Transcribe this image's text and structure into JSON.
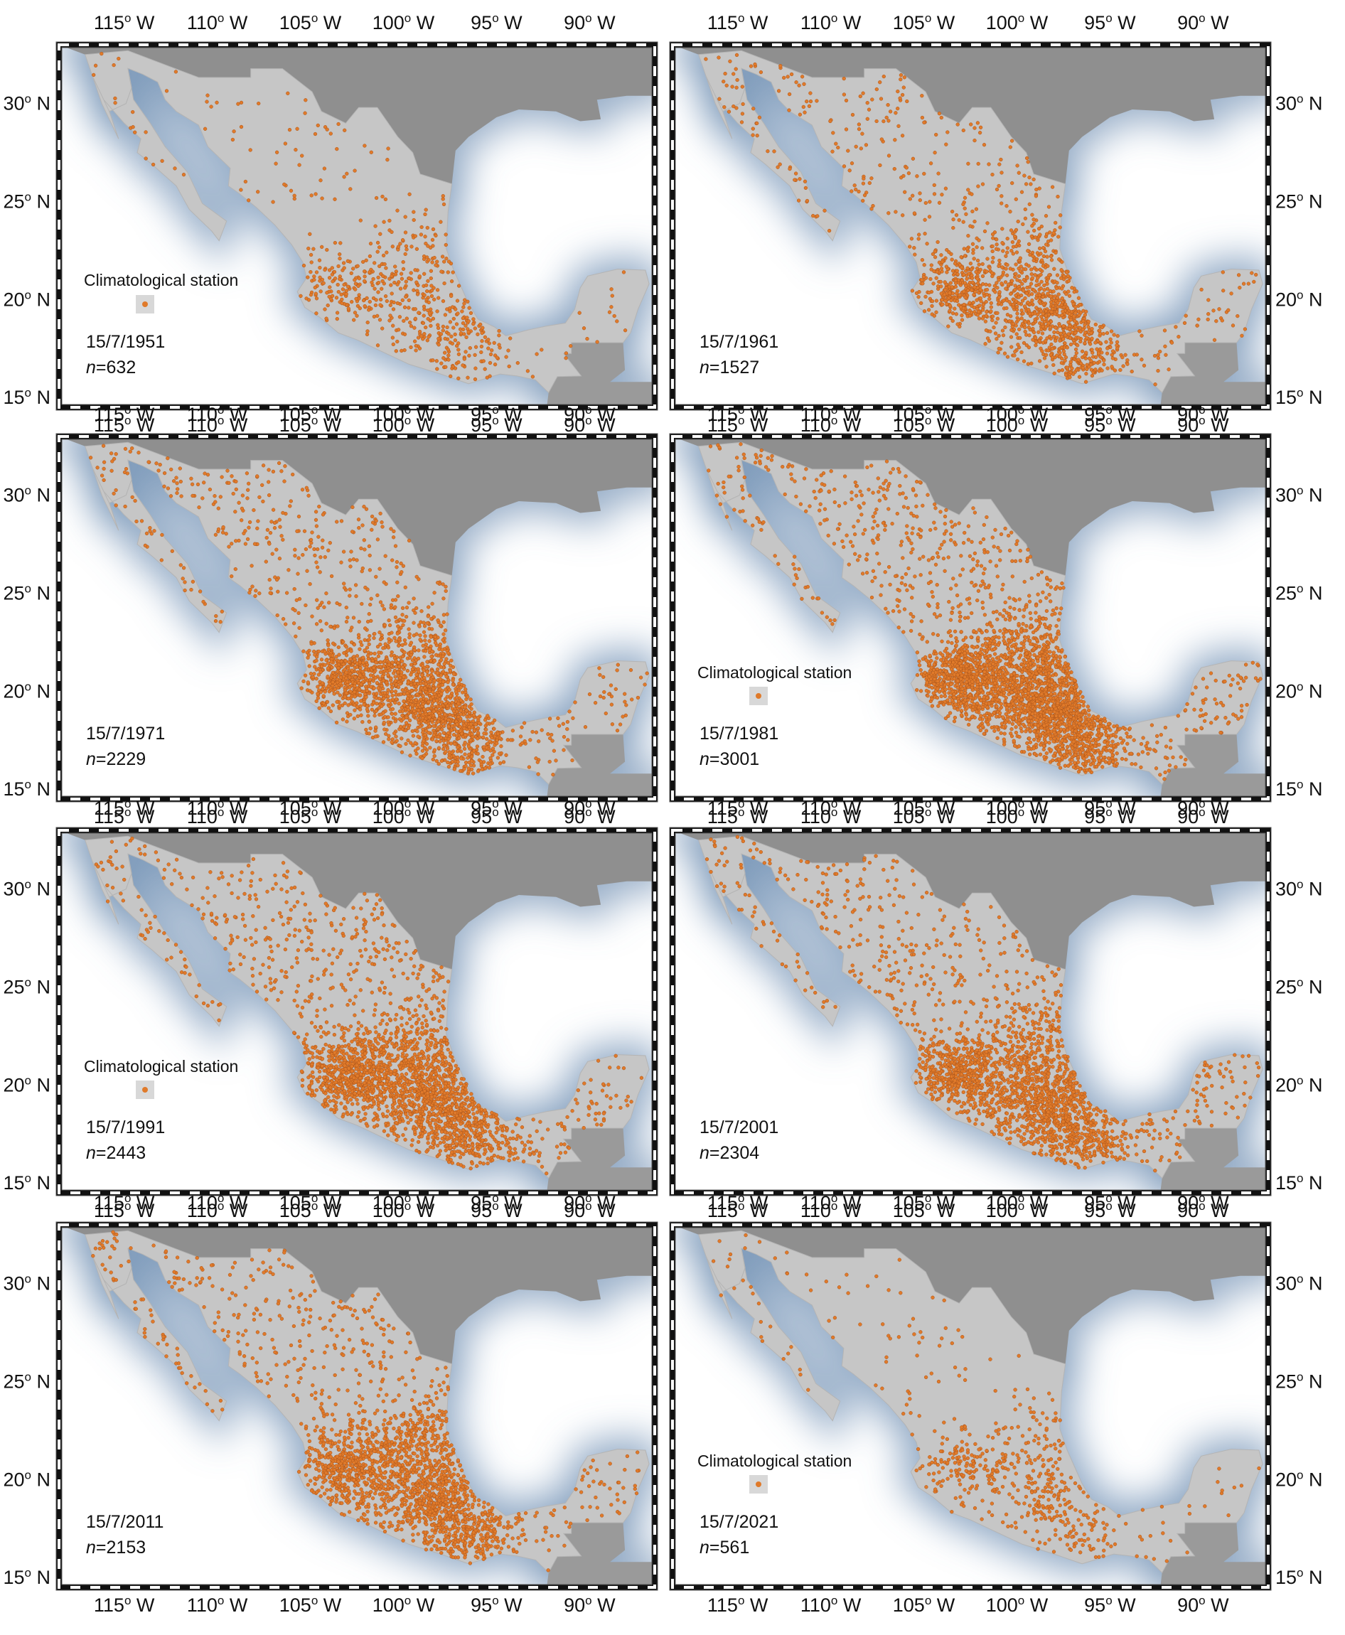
{
  "map": {
    "lon_labels": [
      {
        "deg": "115",
        "hem": "W",
        "lon": -115
      },
      {
        "deg": "110",
        "hem": "W",
        "lon": -110
      },
      {
        "deg": "105",
        "hem": "W",
        "lon": -105
      },
      {
        "deg": "100",
        "hem": "W",
        "lon": -100
      },
      {
        "deg": "95",
        "hem": "W",
        "lon": -95
      },
      {
        "deg": "90",
        "hem": "W",
        "lon": -90
      }
    ],
    "lat_labels": [
      {
        "deg": "30",
        "hem": "N",
        "lat": 30
      },
      {
        "deg": "25",
        "hem": "N",
        "lat": 25
      },
      {
        "deg": "20",
        "hem": "N",
        "lat": 20
      },
      {
        "deg": "15",
        "hem": "N",
        "lat": 15
      }
    ],
    "degree_symbol": "o",
    "lon_range": [
      -118.5,
      -86.5
    ],
    "lat_range": [
      14.5,
      33.0
    ],
    "colors": {
      "land": "#c6c6c6",
      "usa": "#8f8f8f",
      "central_america": "#9a9a9a",
      "ocean_glow": "#6f8fb3",
      "station": "#e07a2a",
      "frame": "#111111"
    }
  },
  "legend_label": "Climatological station",
  "n_prefix": "n",
  "n_eq": "=",
  "panels": [
    {
      "date": "15/7/1951",
      "n": "632",
      "show_legend": true
    },
    {
      "date": "15/7/1961",
      "n": "1527",
      "show_legend": false
    },
    {
      "date": "15/7/1971",
      "n": "2229",
      "show_legend": false
    },
    {
      "date": "15/7/1981",
      "n": "3001",
      "show_legend": true
    },
    {
      "date": "15/7/1991",
      "n": "2443",
      "show_legend": true
    },
    {
      "date": "15/7/2001",
      "n": "2304",
      "show_legend": false
    },
    {
      "date": "15/7/2011",
      "n": "2153",
      "show_legend": false
    },
    {
      "date": "15/7/2021",
      "n": "561",
      "show_legend": true
    }
  ]
}
